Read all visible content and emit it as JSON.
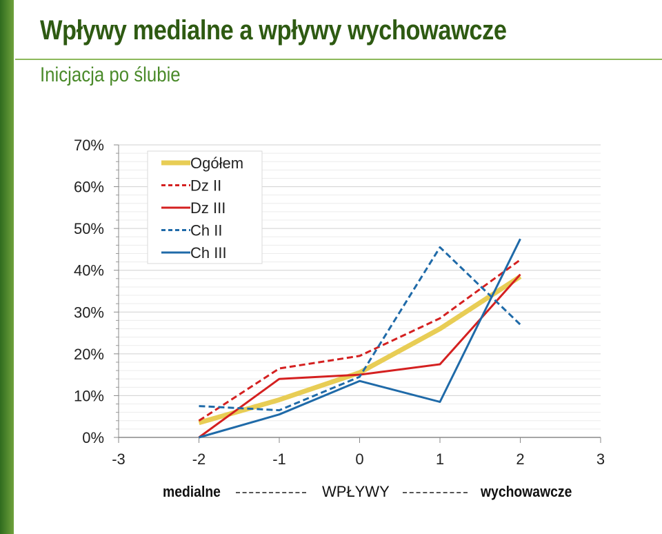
{
  "title": "Wpływy medialne a wpływy wychowawcze",
  "subtitle": "Inicjacja po ślubie",
  "footer": {
    "left": "medialne",
    "center": "WPŁYWY",
    "right": "wychowawcze"
  },
  "chart_data": {
    "type": "line",
    "title": "",
    "xlabel": "",
    "ylabel": "",
    "xlim": [
      -3,
      3
    ],
    "ylim": [
      0,
      70
    ],
    "x_ticks": [
      "-3",
      "-2",
      "-1",
      "0",
      "1",
      "2",
      "3"
    ],
    "y_ticks": [
      "0%",
      "10%",
      "20%",
      "30%",
      "40%",
      "50%",
      "60%",
      "70%"
    ],
    "grid": true,
    "legend_position": "top-left",
    "series": [
      {
        "name": "Ogółem",
        "color": "#e8cd55",
        "style": "solid-thick",
        "x": [
          -2,
          -1,
          0,
          1,
          2
        ],
        "y": [
          3.5,
          9,
          15.5,
          26,
          38.5
        ]
      },
      {
        "name": "Dz II",
        "color": "#d42020",
        "style": "dashed",
        "x": [
          -2,
          -1,
          0,
          1,
          2
        ],
        "y": [
          4,
          16.5,
          19.5,
          28.5,
          42.5
        ]
      },
      {
        "name": "Dz III",
        "color": "#d42020",
        "style": "solid",
        "x": [
          -2,
          -1,
          0,
          1,
          2
        ],
        "y": [
          0,
          14,
          15,
          17.5,
          39
        ]
      },
      {
        "name": "Ch II",
        "color": "#1f6aa8",
        "style": "dashed",
        "x": [
          -2,
          -1,
          0,
          1,
          2
        ],
        "y": [
          7.5,
          6.5,
          14.5,
          45.5,
          27
        ]
      },
      {
        "name": "Ch III",
        "color": "#1f6aa8",
        "style": "solid",
        "x": [
          -2,
          -1,
          0,
          1,
          2
        ],
        "y": [
          0,
          5.5,
          13.5,
          8.5,
          47.5
        ]
      }
    ]
  }
}
